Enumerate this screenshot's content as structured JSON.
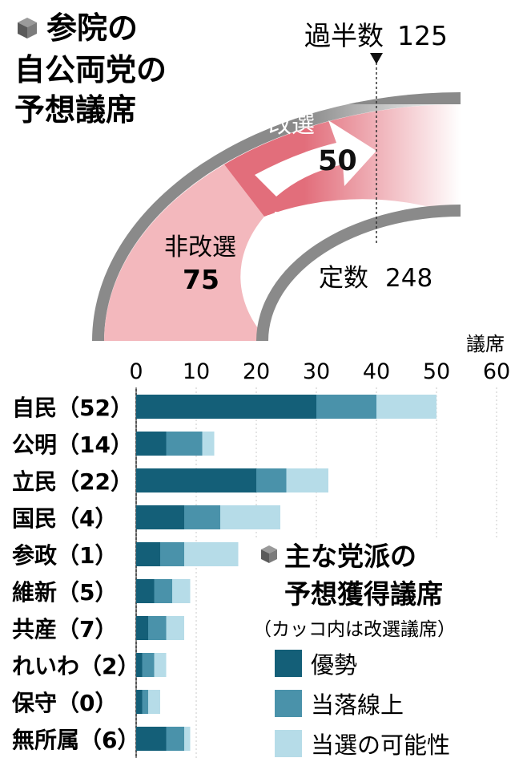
{
  "headline": {
    "lines": [
      "参院の",
      "自公両党の",
      "予想議席"
    ],
    "icon": "cube-icon"
  },
  "seat_diagram": {
    "majority_label": "過半数",
    "majority_value": "125",
    "total_label": "定数",
    "total_value": "248",
    "non_contested_label": "非改選",
    "non_contested_value": "75",
    "contested_label": "改選",
    "contested_value": "50",
    "coalition_label": "自公",
    "colors": {
      "outline": "#7a7a7a",
      "non_contested": "#f3b8bd",
      "contested": "#e26e7b",
      "arrow": "#ffffff"
    }
  },
  "legend": {
    "title_lines": [
      "主な党派の",
      "予想獲得議席"
    ],
    "note": "（カッコ内は改選議席）",
    "icon": "cube-icon",
    "items": [
      {
        "label": "優勢",
        "color": "#145f78"
      },
      {
        "label": "当落線上",
        "color": "#4a92aa"
      },
      {
        "label": "当選の可能性",
        "color": "#b6dce8"
      }
    ]
  },
  "chart_data": {
    "type": "bar",
    "orientation": "horizontal",
    "stacked": true,
    "unit_label": "議席",
    "xlim": [
      0,
      60
    ],
    "ticks": [
      "0",
      "10",
      "20",
      "30",
      "40",
      "50",
      "60"
    ],
    "categories": [
      "自民（52）",
      "公明（14）",
      "立民（22）",
      "国民（4）",
      "参政（1）",
      "維新（5）",
      "共産（7）",
      "れいわ（2）",
      "保守（0）",
      "無所属（6）"
    ],
    "series": [
      {
        "name": "優勢",
        "values": [
          30,
          5,
          20,
          8,
          4,
          3,
          2,
          1,
          1,
          5
        ]
      },
      {
        "name": "当落線上",
        "values": [
          10,
          6,
          5,
          6,
          4,
          3,
          3,
          2,
          1,
          3
        ]
      },
      {
        "name": "当選の可能性",
        "values": [
          10,
          2,
          7,
          10,
          9,
          3,
          3,
          2,
          2,
          1
        ]
      }
    ]
  }
}
